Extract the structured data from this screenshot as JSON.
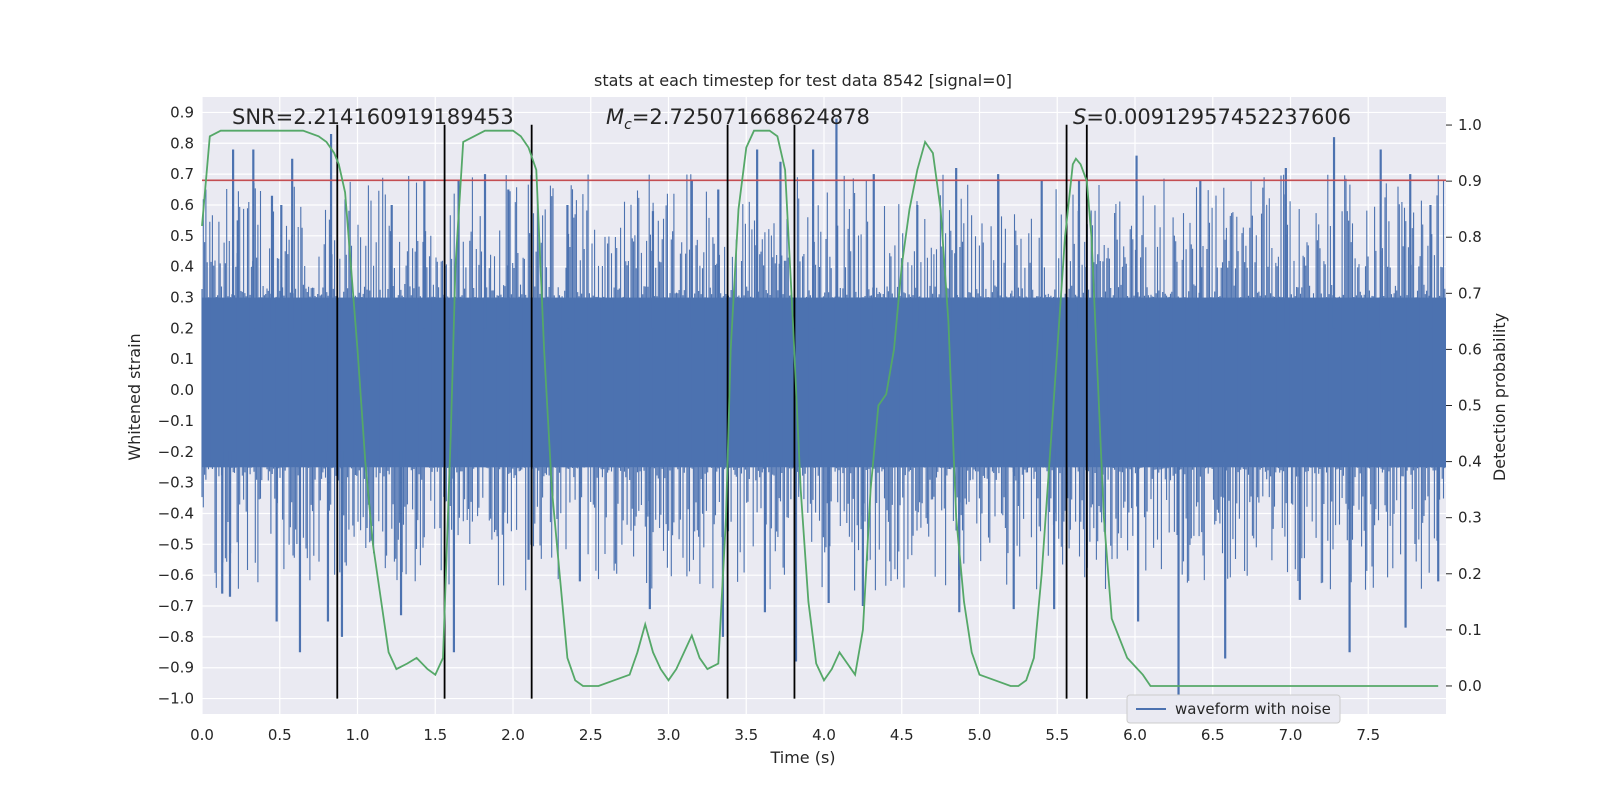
{
  "chart_data": {
    "type": "line",
    "title": "stats at each timestep for test data 8542 [signal=0]",
    "xlabel": "Time (s)",
    "ylabel_left": "Whitened strain",
    "ylabel_right": "Detection probability",
    "xlim": [
      0.0,
      8.0
    ],
    "ylim_left": [
      -1.05,
      0.95
    ],
    "ylim_right": [
      -0.05,
      1.05
    ],
    "xticks": [
      "0.0",
      "0.5",
      "1.0",
      "1.5",
      "2.0",
      "2.5",
      "3.0",
      "3.5",
      "4.0",
      "4.5",
      "5.0",
      "5.5",
      "6.0",
      "6.5",
      "7.0",
      "7.5"
    ],
    "yticks_left": [
      "0.9",
      "0.8",
      "0.7",
      "0.6",
      "0.5",
      "0.4",
      "0.3",
      "0.2",
      "0.1",
      "0.0",
      "−0.1",
      "−0.2",
      "−0.3",
      "−0.4",
      "−0.5",
      "−0.6",
      "−0.7",
      "−0.8",
      "−0.9",
      "−1.0"
    ],
    "yticks_right": [
      "1.0",
      "0.9",
      "0.8",
      "0.7",
      "0.6",
      "0.5",
      "0.4",
      "0.3",
      "0.2",
      "0.1",
      "0.0"
    ],
    "grid": true,
    "annotations": {
      "snr": "SNR=2.214160919189453",
      "mc_symbol": "M",
      "mc_sub": "c",
      "mc_value": "=2.725071668624878",
      "s_symbol": "S",
      "s_value": "=0.00912957452237606"
    },
    "threshold": {
      "value": 0.68,
      "axis": "left",
      "color": "#c44e52"
    },
    "vlines": {
      "x": [
        0.87,
        1.56,
        2.12,
        3.38,
        3.81,
        5.56,
        5.69
      ],
      "ymin": -1.0,
      "ymax": 0.86,
      "color": "#000000"
    },
    "series": [
      {
        "name": "waveform with noise",
        "axis": "left",
        "color": "#4c72b0",
        "kind": "noise-waveform",
        "band": [
          -0.25,
          0.3
        ],
        "spikes_up": [
          [
            0.2,
            0.78
          ],
          [
            0.23,
            0.55
          ],
          [
            0.33,
            0.78
          ],
          [
            0.45,
            0.63
          ],
          [
            0.51,
            0.6
          ],
          [
            0.58,
            0.75
          ],
          [
            0.83,
            0.83
          ],
          [
            1.22,
            0.6
          ],
          [
            1.43,
            0.68
          ],
          [
            1.65,
            0.68
          ],
          [
            1.82,
            0.7
          ],
          [
            1.97,
            0.65
          ],
          [
            2.35,
            0.6
          ],
          [
            2.9,
            0.58
          ],
          [
            3.15,
            0.68
          ],
          [
            3.32,
            0.65
          ],
          [
            3.57,
            0.78
          ],
          [
            3.72,
            0.74
          ],
          [
            3.93,
            0.78
          ],
          [
            4.08,
            0.88
          ],
          [
            4.32,
            0.7
          ],
          [
            4.6,
            0.6
          ],
          [
            4.85,
            0.72
          ],
          [
            5.12,
            0.7
          ],
          [
            5.4,
            0.68
          ],
          [
            5.64,
            0.68
          ],
          [
            6.01,
            0.76
          ],
          [
            6.42,
            0.68
          ],
          [
            6.97,
            0.72
          ],
          [
            7.28,
            0.82
          ],
          [
            7.58,
            0.78
          ],
          [
            7.77,
            0.7
          ],
          [
            7.9,
            0.6
          ]
        ],
        "spikes_down": [
          [
            0.13,
            -0.66
          ],
          [
            0.18,
            -0.67
          ],
          [
            0.48,
            -0.75
          ],
          [
            0.63,
            -0.85
          ],
          [
            0.81,
            -0.75
          ],
          [
            0.9,
            -0.8
          ],
          [
            1.28,
            -0.73
          ],
          [
            1.62,
            -0.85
          ],
          [
            2.1,
            -0.55
          ],
          [
            2.43,
            -0.62
          ],
          [
            2.88,
            -0.71
          ],
          [
            3.35,
            -0.8
          ],
          [
            3.62,
            -0.72
          ],
          [
            3.82,
            -0.88
          ],
          [
            4.03,
            -0.69
          ],
          [
            4.25,
            -0.7
          ],
          [
            4.87,
            -0.72
          ],
          [
            5.22,
            -0.71
          ],
          [
            5.48,
            -0.71
          ],
          [
            6.02,
            -0.75
          ],
          [
            6.28,
            -1.0
          ],
          [
            6.58,
            -0.87
          ],
          [
            7.06,
            -0.68
          ],
          [
            7.38,
            -0.85
          ],
          [
            7.74,
            -0.77
          ],
          [
            7.95,
            -0.62
          ]
        ]
      },
      {
        "name": "",
        "axis": "right",
        "color": "#55a868",
        "x": [
          0.0,
          0.05,
          0.12,
          0.3,
          0.6,
          0.65,
          0.75,
          0.8,
          0.85,
          0.88,
          0.92,
          1.0,
          1.05,
          1.1,
          1.2,
          1.25,
          1.32,
          1.38,
          1.45,
          1.5,
          1.55,
          1.6,
          1.63,
          1.68,
          1.75,
          1.82,
          1.9,
          2.0,
          2.05,
          2.1,
          2.15,
          2.2,
          2.25,
          2.3,
          2.35,
          2.4,
          2.45,
          2.55,
          2.65,
          2.75,
          2.8,
          2.85,
          2.9,
          2.95,
          3.0,
          3.05,
          3.15,
          3.2,
          3.25,
          3.32,
          3.37,
          3.4,
          3.45,
          3.5,
          3.55,
          3.6,
          3.65,
          3.7,
          3.75,
          3.8,
          3.85,
          3.9,
          3.95,
          4.0,
          4.05,
          4.1,
          4.15,
          4.2,
          4.25,
          4.3,
          4.35,
          4.4,
          4.45,
          4.5,
          4.55,
          4.6,
          4.65,
          4.7,
          4.75,
          4.8,
          4.85,
          4.9,
          4.95,
          5.0,
          5.1,
          5.2,
          5.25,
          5.3,
          5.35,
          5.4,
          5.45,
          5.5,
          5.55,
          5.6,
          5.62,
          5.65,
          5.69,
          5.72,
          5.76,
          5.8,
          5.85,
          5.95,
          6.05,
          6.1,
          6.2,
          6.4,
          6.6,
          6.8,
          7.0,
          7.2,
          7.4,
          7.5,
          7.6,
          7.7,
          7.8,
          7.85,
          7.95
        ],
        "y": [
          0.82,
          0.98,
          0.99,
          0.99,
          0.99,
          0.99,
          0.98,
          0.97,
          0.95,
          0.93,
          0.88,
          0.6,
          0.4,
          0.25,
          0.06,
          0.03,
          0.04,
          0.05,
          0.03,
          0.02,
          0.05,
          0.45,
          0.75,
          0.97,
          0.98,
          0.99,
          0.99,
          0.99,
          0.98,
          0.96,
          0.92,
          0.6,
          0.35,
          0.2,
          0.05,
          0.01,
          0.0,
          0.0,
          0.01,
          0.02,
          0.06,
          0.11,
          0.06,
          0.03,
          0.01,
          0.03,
          0.09,
          0.05,
          0.03,
          0.04,
          0.3,
          0.6,
          0.85,
          0.96,
          0.99,
          0.99,
          0.99,
          0.98,
          0.92,
          0.65,
          0.35,
          0.15,
          0.04,
          0.01,
          0.03,
          0.06,
          0.04,
          0.02,
          0.1,
          0.35,
          0.5,
          0.52,
          0.6,
          0.75,
          0.85,
          0.92,
          0.97,
          0.95,
          0.85,
          0.65,
          0.3,
          0.15,
          0.06,
          0.02,
          0.01,
          0.0,
          0.0,
          0.01,
          0.05,
          0.2,
          0.4,
          0.6,
          0.8,
          0.93,
          0.94,
          0.93,
          0.9,
          0.8,
          0.55,
          0.3,
          0.12,
          0.05,
          0.02,
          0.0,
          0.0,
          0.0,
          0.0,
          0.0,
          0.0,
          0.0,
          0.0,
          0.0,
          0.0,
          0.0,
          0.0,
          0.0,
          0.0
        ]
      }
    ],
    "legend": {
      "placement": "lower-right",
      "entries": [
        "waveform with noise"
      ]
    }
  }
}
